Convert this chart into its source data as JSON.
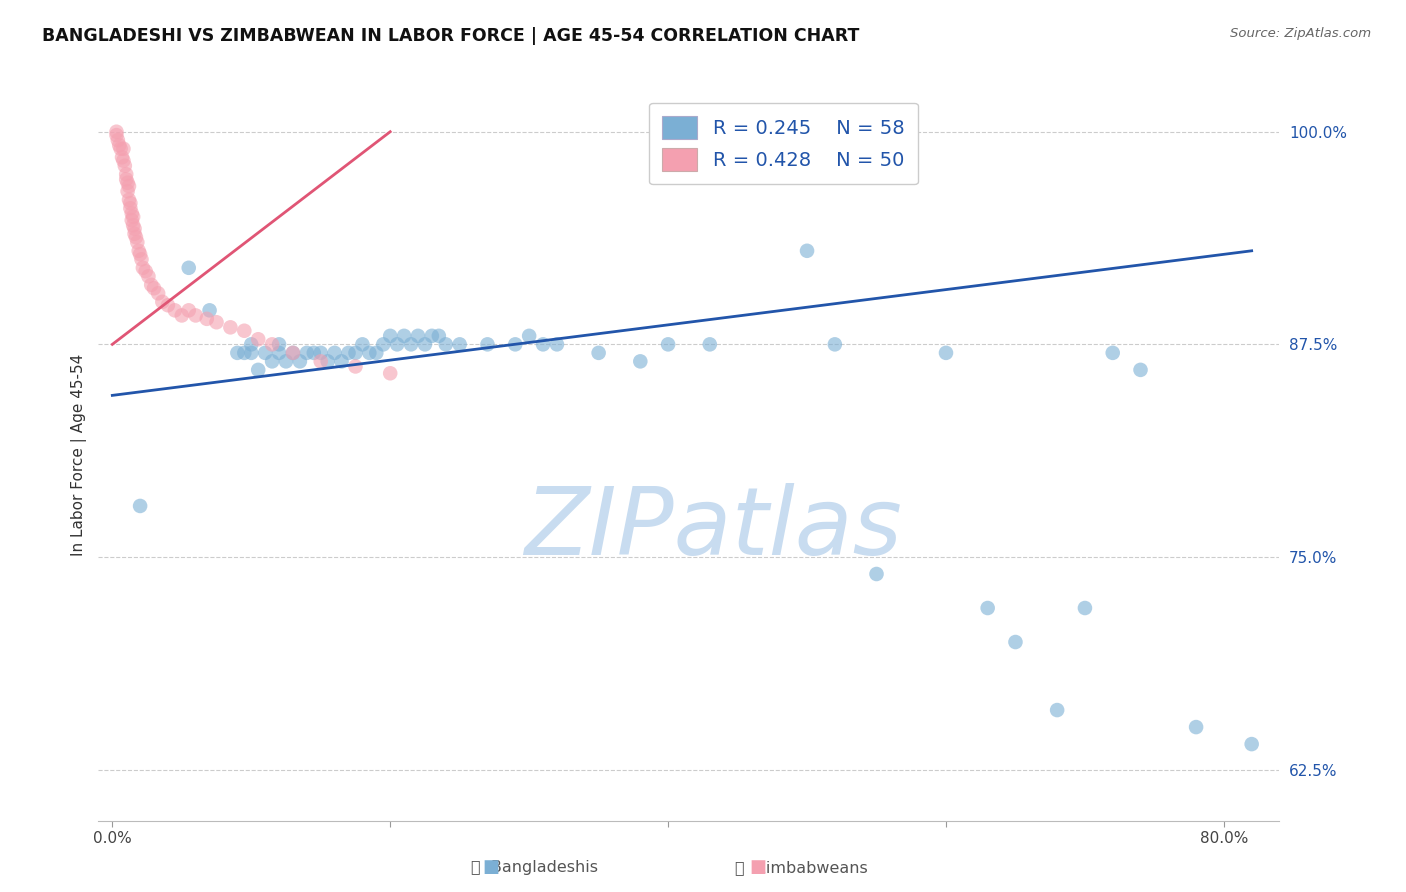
{
  "title": "BANGLADESHI VS ZIMBABWEAN IN LABOR FORCE | AGE 45-54 CORRELATION CHART",
  "source": "Source: ZipAtlas.com",
  "ylabel": "In Labor Force | Age 45-54",
  "x_lim": [
    -0.01,
    0.84
  ],
  "y_lim": [
    0.595,
    1.025
  ],
  "y_ticks": [
    0.625,
    0.75,
    0.875,
    1.0
  ],
  "y_tick_labels": [
    "62.5%",
    "75.0%",
    "87.5%",
    "100.0%"
  ],
  "x_ticks": [
    0.0,
    0.2,
    0.4,
    0.6,
    0.8
  ],
  "x_tick_labels": [
    "0.0%",
    "",
    "",
    "",
    "80.0%"
  ],
  "legend_blue_r": "0.245",
  "legend_blue_n": "58",
  "legend_pink_r": "0.428",
  "legend_pink_n": "50",
  "blue_color": "#7bafd4",
  "pink_color": "#f4a0b0",
  "blue_line_color": "#2255aa",
  "pink_line_color": "#e05575",
  "blue_scatter_x": [
    0.02,
    0.055,
    0.07,
    0.09,
    0.095,
    0.1,
    0.1,
    0.105,
    0.11,
    0.115,
    0.12,
    0.12,
    0.125,
    0.13,
    0.135,
    0.14,
    0.145,
    0.15,
    0.155,
    0.16,
    0.165,
    0.17,
    0.175,
    0.18,
    0.185,
    0.19,
    0.195,
    0.2,
    0.205,
    0.21,
    0.215,
    0.22,
    0.225,
    0.23,
    0.235,
    0.24,
    0.25,
    0.27,
    0.29,
    0.3,
    0.31,
    0.32,
    0.35,
    0.38,
    0.4,
    0.43,
    0.5,
    0.52,
    0.55,
    0.6,
    0.63,
    0.65,
    0.68,
    0.7,
    0.72,
    0.74,
    0.78,
    0.82
  ],
  "blue_scatter_y": [
    0.78,
    0.92,
    0.895,
    0.87,
    0.87,
    0.875,
    0.87,
    0.86,
    0.87,
    0.865,
    0.875,
    0.87,
    0.865,
    0.87,
    0.865,
    0.87,
    0.87,
    0.87,
    0.865,
    0.87,
    0.865,
    0.87,
    0.87,
    0.875,
    0.87,
    0.87,
    0.875,
    0.88,
    0.875,
    0.88,
    0.875,
    0.88,
    0.875,
    0.88,
    0.88,
    0.875,
    0.875,
    0.875,
    0.875,
    0.88,
    0.875,
    0.875,
    0.87,
    0.865,
    0.875,
    0.875,
    0.93,
    0.875,
    0.74,
    0.87,
    0.72,
    0.7,
    0.66,
    0.72,
    0.87,
    0.86,
    0.65,
    0.64
  ],
  "pink_scatter_x": [
    0.003,
    0.003,
    0.004,
    0.005,
    0.006,
    0.007,
    0.008,
    0.008,
    0.009,
    0.01,
    0.01,
    0.011,
    0.011,
    0.012,
    0.012,
    0.013,
    0.013,
    0.014,
    0.014,
    0.015,
    0.015,
    0.016,
    0.016,
    0.017,
    0.018,
    0.019,
    0.02,
    0.021,
    0.022,
    0.024,
    0.026,
    0.028,
    0.03,
    0.033,
    0.036,
    0.04,
    0.045,
    0.05,
    0.055,
    0.06,
    0.068,
    0.075,
    0.085,
    0.095,
    0.105,
    0.115,
    0.13,
    0.15,
    0.175,
    0.2
  ],
  "pink_scatter_y": [
    1.0,
    0.998,
    0.995,
    0.992,
    0.99,
    0.985,
    0.99,
    0.983,
    0.98,
    0.975,
    0.972,
    0.97,
    0.965,
    0.968,
    0.96,
    0.958,
    0.955,
    0.952,
    0.948,
    0.95,
    0.945,
    0.943,
    0.94,
    0.938,
    0.935,
    0.93,
    0.928,
    0.925,
    0.92,
    0.918,
    0.915,
    0.91,
    0.908,
    0.905,
    0.9,
    0.898,
    0.895,
    0.892,
    0.895,
    0.892,
    0.89,
    0.888,
    0.885,
    0.883,
    0.878,
    0.875,
    0.87,
    0.865,
    0.862,
    0.858
  ],
  "blue_trend_x": [
    0.0,
    0.82
  ],
  "blue_trend_y": [
    0.845,
    0.93
  ],
  "pink_trend_x": [
    0.0,
    0.2
  ],
  "pink_trend_y": [
    0.875,
    1.0
  ],
  "bottom_labels": [
    "Bangladeshis",
    "Zimbabweans"
  ],
  "watermark_text": "ZIPatlas",
  "watermark_color": "#c8dcf0"
}
